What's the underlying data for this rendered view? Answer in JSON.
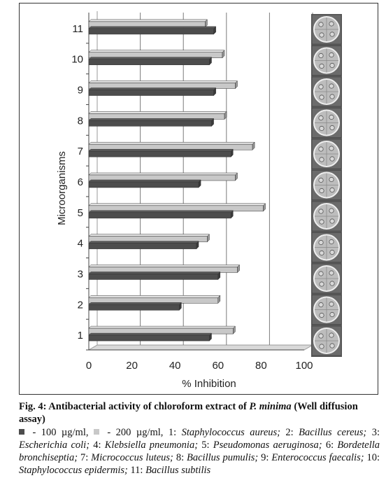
{
  "chart_data": {
    "type": "bar",
    "orientation": "horizontal",
    "ylabel": "Microorganisms",
    "xlabel": "% Inhibition",
    "xlim": [
      0,
      100
    ],
    "x_ticks": [
      "0",
      "20",
      "40",
      "60",
      "80",
      "100"
    ],
    "categories": [
      "1",
      "2",
      "3",
      "4",
      "5",
      "6",
      "7",
      "8",
      "9",
      "10",
      "11"
    ],
    "series": [
      {
        "name": "100 µg/ml",
        "color": "#4d4d4d",
        "values": [
          56,
          42,
          60,
          50,
          66,
          51,
          66,
          57,
          58,
          56,
          58
        ]
      },
      {
        "name": "200 µg/ml",
        "color": "#c8c8c8",
        "values": [
          67,
          60,
          69,
          55,
          81,
          68,
          76,
          63,
          68,
          62,
          54
        ]
      }
    ],
    "grid": "vertical",
    "plate_images": 11
  },
  "caption": {
    "fig_label": "Fig. 4:",
    "title_text": " Antibacterial activity of chloroform extract of ",
    "species": "P. minima",
    "title_suffix": " (Well diffusion assay)",
    "legend_100": " - 100 µg/ml, ",
    "legend_200": " - 200 µg/ml, ",
    "organisms": [
      {
        "num": "1: ",
        "name": "Staphylococcus aureus; "
      },
      {
        "num": "2: ",
        "name": "Bacillus cereus; "
      },
      {
        "num": "3: ",
        "name": "Escherichia coli; "
      },
      {
        "num": "4: ",
        "name": "Klebsiella pneumonia; "
      },
      {
        "num": "5: ",
        "name": "Pseudomonas aeruginosa; "
      },
      {
        "num": "6: ",
        "name": "Bordetella bronchiseptia; "
      },
      {
        "num": "7: ",
        "name": "Micrococcus luteus; "
      },
      {
        "num": "8: ",
        "name": "Bacillus pumulis; "
      },
      {
        "num": "9: ",
        "name": "Enterococcus faecalis; "
      },
      {
        "num": "10: ",
        "name": "Staphylococcus epidermis; "
      },
      {
        "num": "11: ",
        "name": "Bacillus subtilis"
      }
    ]
  }
}
